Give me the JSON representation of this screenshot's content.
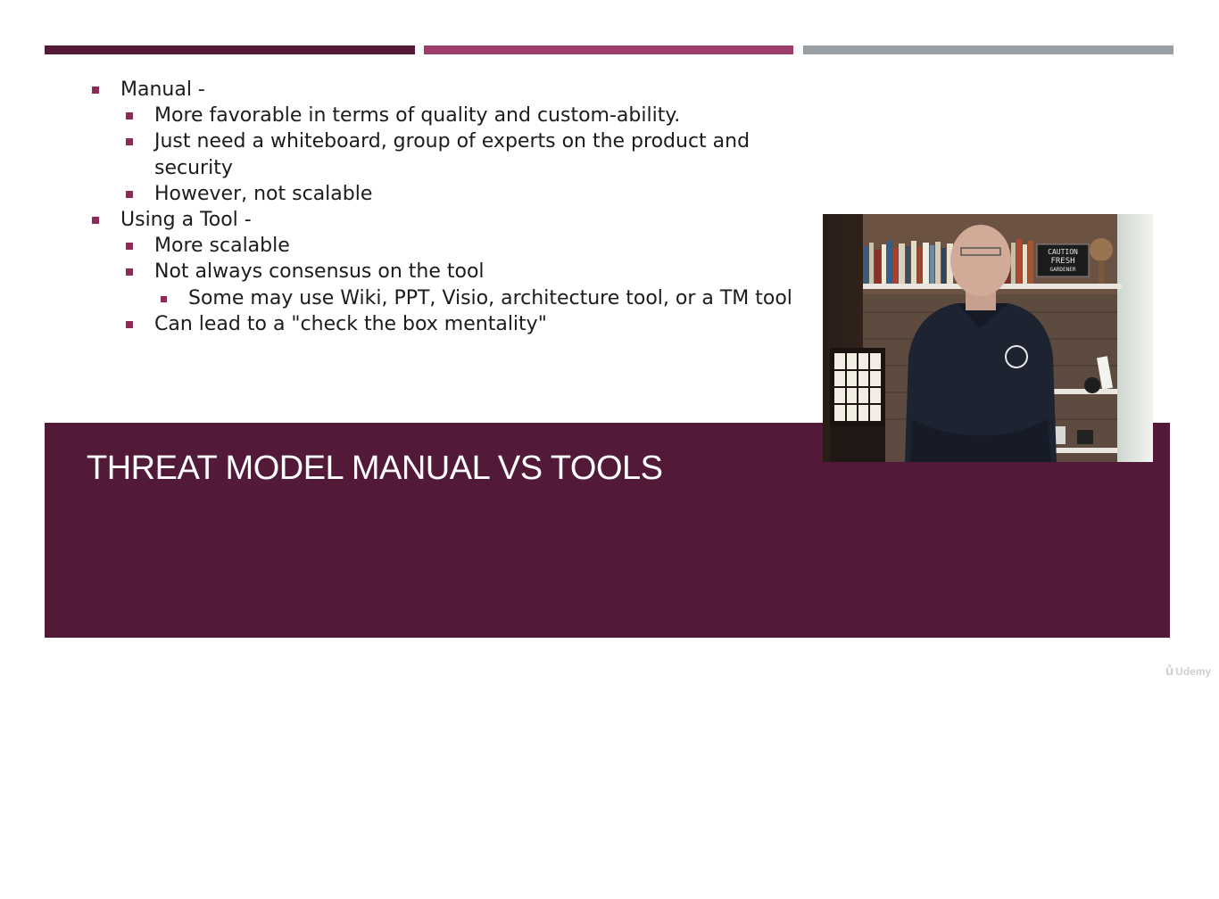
{
  "slide": {
    "title": "THREAT MODEL MANUAL VS TOOLS",
    "bullets": [
      {
        "level": 1,
        "text": "Manual -"
      },
      {
        "level": 2,
        "text": "More favorable in terms of quality and custom-ability."
      },
      {
        "level": 2,
        "text": "Just need a whiteboard, group of experts on the product and"
      },
      {
        "level": 2,
        "text": "security",
        "continuation": true
      },
      {
        "level": 2,
        "text": "However, not scalable"
      },
      {
        "level": 1,
        "text": "Using a Tool -"
      },
      {
        "level": 2,
        "text": "More scalable"
      },
      {
        "level": 2,
        "text": "Not always consensus on the tool"
      },
      {
        "level": 3,
        "text": "Some may use Wiki, PPT, Visio, architecture tool, or a TM tool"
      },
      {
        "level": 2,
        "text": "Can lead to a \"check the box mentality\""
      }
    ]
  },
  "video": {
    "sign_text": [
      "CAUTION",
      "FRESH",
      "GARDENER"
    ]
  },
  "watermark": {
    "text": "Udemy"
  },
  "colors": {
    "accent_dark": "#561a39",
    "accent_mid": "#9e3c6b",
    "accent_grey": "#999ea3",
    "bullet": "#8e2a57",
    "title_band": "#521a38"
  }
}
